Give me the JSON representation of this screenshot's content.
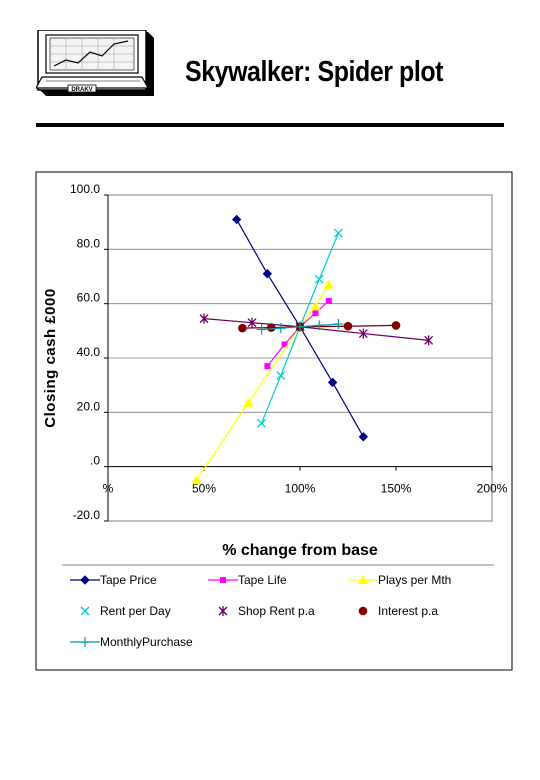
{
  "header": {
    "logo_label": "DRAKV",
    "title": "Skywalker: Spider plot"
  },
  "chart_data": {
    "type": "line",
    "xlabel": "% change from base",
    "ylabel": "Closing cash £000",
    "xlim": [
      0,
      200
    ],
    "ylim": [
      -20,
      100
    ],
    "x_ticks": [
      {
        "value": 0,
        "label": "%"
      },
      {
        "value": 50,
        "label": "50%"
      },
      {
        "value": 100,
        "label": "100%"
      },
      {
        "value": 150,
        "label": "150%"
      },
      {
        "value": 200,
        "label": "200%"
      }
    ],
    "y_ticks": [
      {
        "value": 100,
        "label": "100.0"
      },
      {
        "value": 80,
        "label": "80.0"
      },
      {
        "value": 60,
        "label": "60.0"
      },
      {
        "value": 40,
        "label": "40.0"
      },
      {
        "value": 20,
        "label": "20.0"
      },
      {
        "value": 0,
        "label": ".0"
      },
      {
        "value": -20,
        "label": "-20.0"
      }
    ],
    "grid": "horizontal",
    "legend_position": "bottom",
    "series": [
      {
        "name": "Tape Price",
        "color": "#000080",
        "marker": "diamond",
        "x": [
          67,
          83,
          100,
          117,
          133
        ],
        "y": [
          91,
          71,
          51.5,
          31,
          11
        ]
      },
      {
        "name": "Tape Life",
        "color": "#ff00ff",
        "marker": "square",
        "x": [
          83,
          92,
          100,
          108,
          115
        ],
        "y": [
          37,
          45,
          51.5,
          56.5,
          61
        ]
      },
      {
        "name": "Plays per Mth",
        "color": "#ffff00",
        "marker": "triangle",
        "x": [
          46,
          73,
          100,
          108,
          115
        ],
        "y": [
          -5,
          23.5,
          51.5,
          59,
          67
        ]
      },
      {
        "name": "Rent per Day",
        "color": "#00cccc",
        "marker": "x",
        "x": [
          80,
          90,
          100,
          110,
          120
        ],
        "y": [
          16,
          33.5,
          51.5,
          69,
          86
        ]
      },
      {
        "name": "Shop Rent p.a",
        "color": "#660066",
        "marker": "star",
        "x": [
          50,
          75,
          100,
          133,
          167
        ],
        "y": [
          54.5,
          53,
          51.5,
          49,
          46.5
        ]
      },
      {
        "name": "Interest p.a",
        "color": "#800000",
        "marker": "circle",
        "x": [
          70,
          85,
          100,
          125,
          150
        ],
        "y": [
          51,
          51.2,
          51.5,
          51.7,
          52
        ]
      },
      {
        "name": "MonthlyPurchase",
        "color": "#0099aa",
        "marker": "plus",
        "x": [
          80,
          90,
          100,
          110,
          120
        ],
        "y": [
          50.5,
          51,
          51.5,
          52,
          52.5
        ]
      }
    ]
  }
}
